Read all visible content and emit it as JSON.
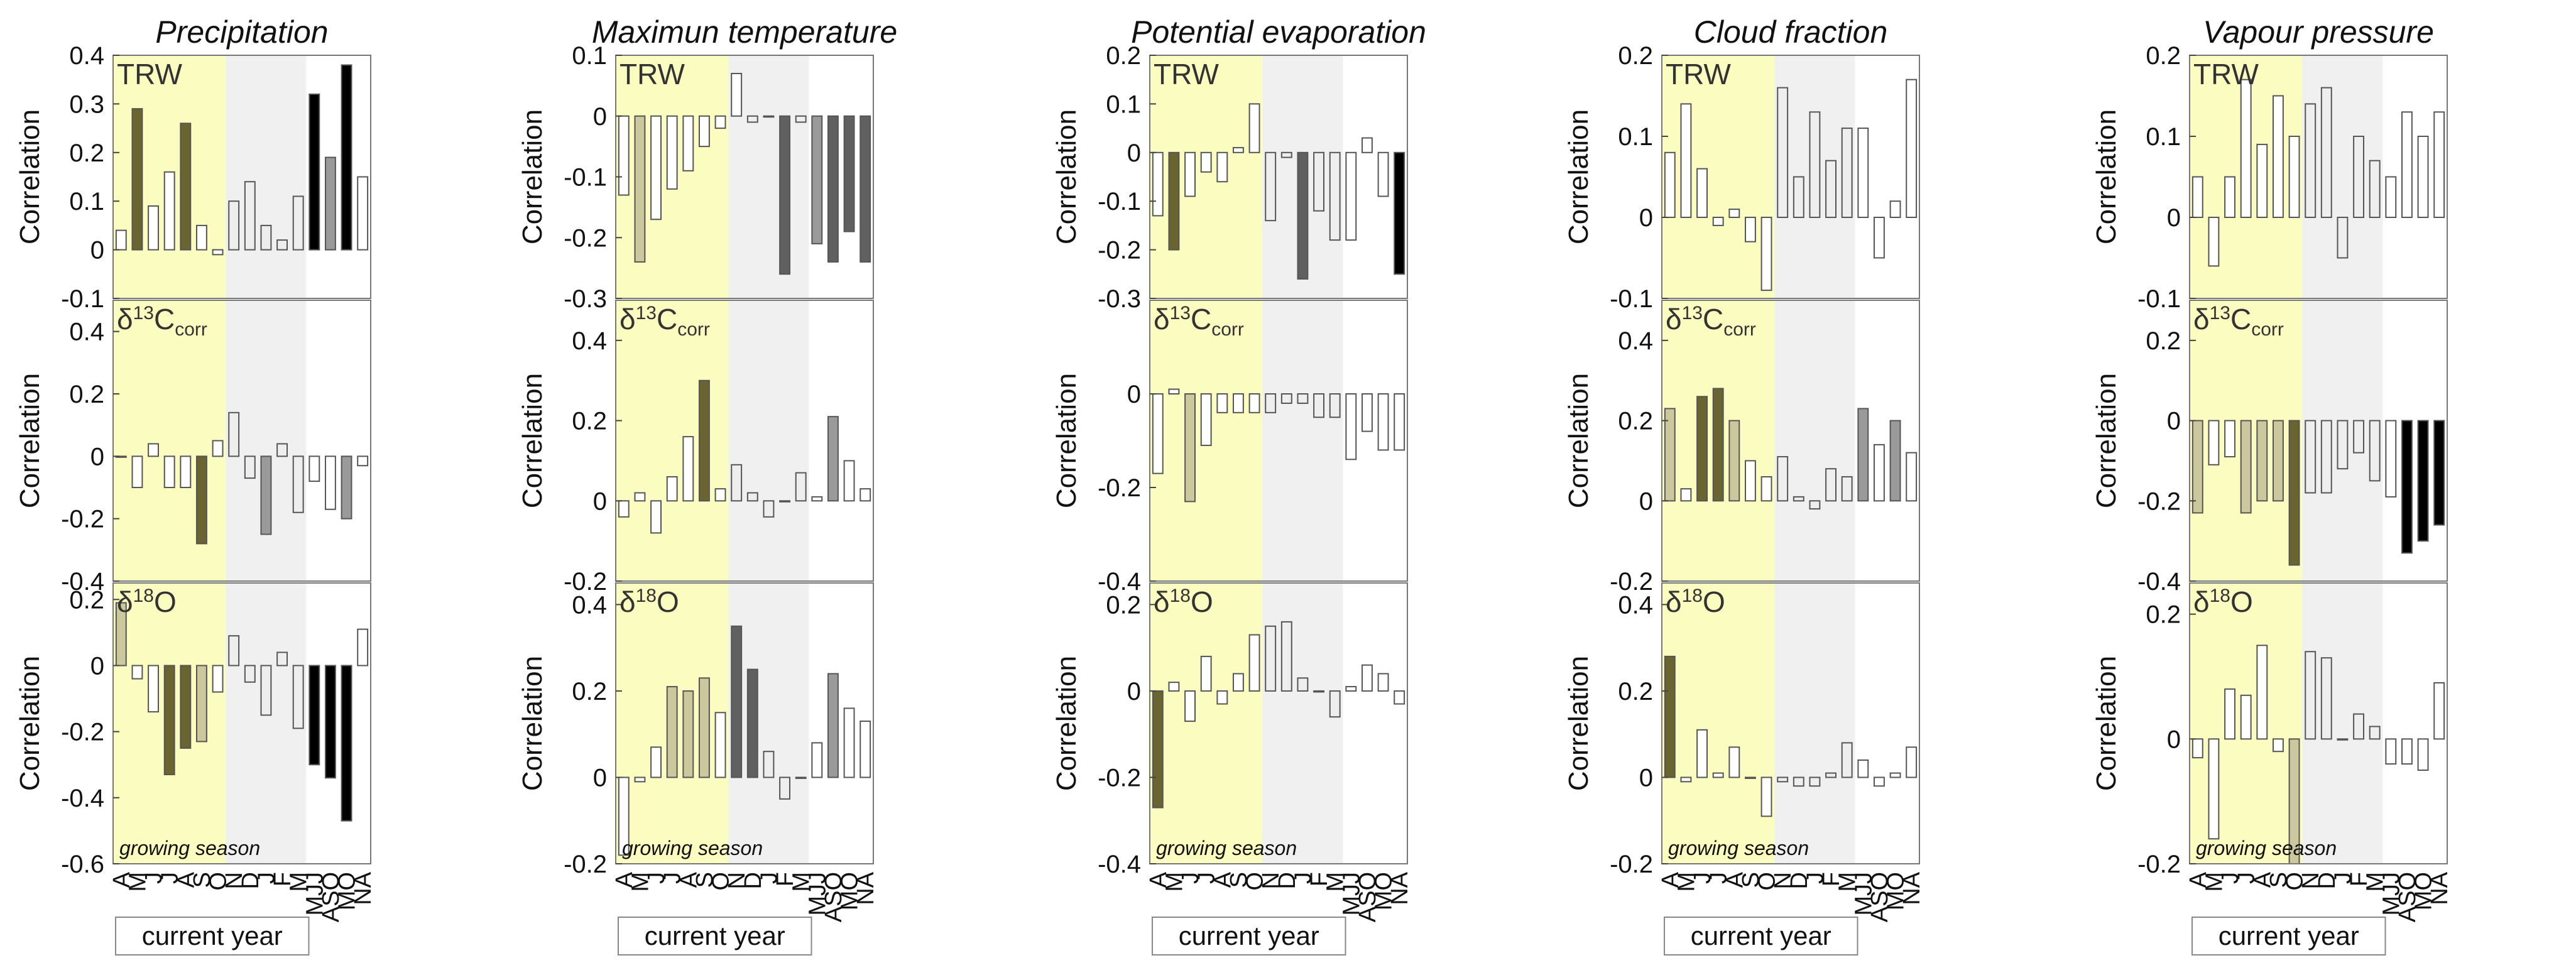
{
  "labels": {
    "y_axis": "Correlation",
    "growing_season": "growing season",
    "current_year": "current year",
    "row_labels": [
      "TRW",
      "δ13Ccorr",
      "δ18O"
    ]
  },
  "categories": [
    "A",
    "M",
    "J",
    "J",
    "A",
    "S",
    "O",
    "N",
    "D",
    "J",
    "F",
    "M",
    "MJJ",
    "ASO",
    "MO",
    "NA"
  ],
  "colors": {
    "growing_bg": "#fbfcc0",
    "dormant_bg": "#f0f0f0",
    "edge": "#555555",
    "f0": "#ffffff",
    "f1": "#eeeeee",
    "f2": "#cbc89e",
    "f3": "#6a6530",
    "f4": "#9a9a9a",
    "f5": "#606060",
    "f6": "#000000"
  },
  "chart_data": [
    {
      "type": "bar",
      "title": "Precipitation",
      "ylabel": "Correlation",
      "rows": [
        {
          "label": "TRW",
          "ylim": [
            -0.1,
            0.4
          ],
          "ticks": [
            0.4,
            0.3,
            0.2,
            0.1,
            0,
            -0.1
          ],
          "values": [
            0.04,
            0.29,
            0.09,
            0.16,
            0.26,
            0.05,
            -0.01,
            0.1,
            0.14,
            0.05,
            0.02,
            0.11,
            0.32,
            0.19,
            0.38,
            0.15
          ],
          "shades": [
            0,
            3,
            0,
            0,
            3,
            0,
            0,
            1,
            1,
            1,
            1,
            1,
            6,
            4,
            6,
            0
          ]
        },
        {
          "label": "δ13Ccorr",
          "ylim": [
            -0.4,
            0.5
          ],
          "ticks": [
            0.4,
            0.2,
            0,
            -0.2,
            -0.4
          ],
          "values": [
            0.0,
            -0.1,
            0.04,
            -0.1,
            -0.1,
            -0.28,
            0.05,
            0.14,
            -0.07,
            -0.25,
            0.04,
            -0.18,
            -0.08,
            -0.17,
            -0.2,
            -0.03
          ],
          "shades": [
            0,
            0,
            0,
            0,
            0,
            3,
            0,
            1,
            1,
            4,
            1,
            1,
            0,
            0,
            4,
            0
          ]
        },
        {
          "label": "δ18O",
          "ylim": [
            -0.6,
            0.25
          ],
          "ticks": [
            0.2,
            0,
            -0.2,
            -0.4,
            -0.6
          ],
          "values": [
            0.19,
            -0.04,
            -0.14,
            -0.33,
            -0.25,
            -0.23,
            -0.08,
            0.09,
            -0.05,
            -0.15,
            0.04,
            -0.19,
            -0.3,
            -0.34,
            -0.47,
            0.11
          ],
          "shades": [
            2,
            0,
            0,
            3,
            3,
            2,
            0,
            1,
            1,
            1,
            1,
            1,
            6,
            6,
            6,
            0
          ]
        }
      ]
    },
    {
      "type": "bar",
      "title": "Maximun temperature",
      "ylabel": "Correlation",
      "rows": [
        {
          "label": "TRW",
          "ylim": [
            -0.3,
            0.1
          ],
          "ticks": [
            0.1,
            0,
            -0.1,
            -0.2,
            -0.3
          ],
          "values": [
            -0.13,
            -0.24,
            -0.17,
            -0.12,
            -0.09,
            -0.05,
            -0.02,
            0.07,
            -0.01,
            0.0,
            -0.26,
            -0.01,
            -0.21,
            -0.24,
            -0.19,
            -0.24
          ],
          "shades": [
            0,
            2,
            0,
            0,
            0,
            0,
            0,
            0,
            1,
            1,
            5,
            1,
            4,
            5,
            5,
            5
          ]
        },
        {
          "label": "δ13Ccorr",
          "ylim": [
            -0.2,
            0.5
          ],
          "ticks": [
            0.4,
            0.2,
            0,
            -0.2
          ],
          "values": [
            -0.04,
            0.02,
            -0.08,
            0.06,
            0.16,
            0.3,
            0.03,
            0.09,
            0.02,
            -0.04,
            0.0,
            0.07,
            0.01,
            0.21,
            0.1,
            0.03
          ],
          "shades": [
            0,
            0,
            0,
            0,
            0,
            3,
            0,
            1,
            1,
            1,
            1,
            1,
            0,
            4,
            0,
            0
          ]
        },
        {
          "label": "δ18O",
          "ylim": [
            -0.2,
            0.45
          ],
          "ticks": [
            0.4,
            0.2,
            0,
            -0.2
          ],
          "values": [
            -0.18,
            -0.01,
            0.07,
            0.21,
            0.2,
            0.23,
            0.15,
            0.35,
            0.25,
            0.06,
            -0.05,
            0.0,
            0.08,
            0.24,
            0.16,
            0.13
          ],
          "shades": [
            0,
            0,
            0,
            2,
            2,
            2,
            0,
            5,
            5,
            1,
            1,
            1,
            0,
            4,
            0,
            0
          ]
        }
      ]
    },
    {
      "type": "bar",
      "title": "Potential evaporation",
      "ylabel": "Correlation",
      "rows": [
        {
          "label": "TRW",
          "ylim": [
            -0.3,
            0.2
          ],
          "ticks": [
            0.2,
            0.1,
            0,
            -0.1,
            -0.2,
            -0.3
          ],
          "values": [
            -0.13,
            -0.2,
            -0.09,
            -0.04,
            -0.06,
            0.01,
            0.1,
            -0.14,
            -0.01,
            -0.26,
            -0.12,
            -0.18,
            -0.18,
            0.03,
            -0.09,
            -0.25
          ],
          "shades": [
            0,
            3,
            0,
            0,
            0,
            0,
            0,
            1,
            1,
            5,
            1,
            1,
            0,
            0,
            0,
            6
          ]
        },
        {
          "label": "δ13Ccorr",
          "ylim": [
            -0.4,
            0.2
          ],
          "ticks": [
            0,
            -0.2,
            -0.4
          ],
          "values": [
            -0.17,
            0.01,
            -0.23,
            -0.11,
            -0.04,
            -0.04,
            -0.04,
            -0.04,
            -0.02,
            -0.02,
            -0.05,
            -0.05,
            -0.14,
            -0.08,
            -0.12,
            -0.12
          ],
          "shades": [
            0,
            0,
            2,
            0,
            0,
            0,
            0,
            1,
            1,
            1,
            1,
            1,
            0,
            0,
            0,
            0
          ]
        },
        {
          "label": "δ18O",
          "ylim": [
            -0.4,
            0.25
          ],
          "ticks": [
            0.2,
            0,
            -0.2,
            -0.4
          ],
          "values": [
            -0.27,
            0.02,
            -0.07,
            0.08,
            -0.03,
            0.04,
            0.13,
            0.15,
            0.16,
            0.03,
            0.0,
            -0.06,
            0.01,
            0.06,
            0.04,
            -0.03
          ],
          "shades": [
            3,
            0,
            0,
            0,
            0,
            0,
            0,
            1,
            1,
            1,
            1,
            1,
            0,
            0,
            0,
            0
          ]
        }
      ]
    },
    {
      "type": "bar",
      "title": "Cloud fraction",
      "ylabel": "Correlation",
      "rows": [
        {
          "label": "TRW",
          "ylim": [
            -0.1,
            0.2
          ],
          "ticks": [
            0.2,
            0.1,
            0,
            -0.1
          ],
          "values": [
            0.08,
            0.14,
            0.06,
            -0.01,
            0.01,
            -0.03,
            -0.09,
            0.16,
            0.05,
            0.13,
            0.07,
            0.11,
            0.11,
            -0.05,
            0.02,
            0.17
          ],
          "shades": [
            0,
            0,
            0,
            0,
            0,
            0,
            0,
            1,
            1,
            1,
            1,
            1,
            0,
            0,
            0,
            0
          ]
        },
        {
          "label": "δ13Ccorr",
          "ylim": [
            -0.2,
            0.5
          ],
          "ticks": [
            0.4,
            0.2,
            0,
            -0.2
          ],
          "values": [
            0.23,
            0.03,
            0.26,
            0.28,
            0.2,
            0.1,
            0.06,
            0.11,
            0.01,
            -0.02,
            0.08,
            0.06,
            0.23,
            0.14,
            0.2,
            0.12
          ],
          "shades": [
            2,
            0,
            3,
            3,
            2,
            0,
            0,
            1,
            1,
            1,
            1,
            1,
            4,
            0,
            4,
            0
          ]
        },
        {
          "label": "δ18O",
          "ylim": [
            -0.2,
            0.45
          ],
          "ticks": [
            0.4,
            0.2,
            0,
            -0.2
          ],
          "values": [
            0.28,
            -0.01,
            0.11,
            0.01,
            0.07,
            0.0,
            -0.09,
            -0.01,
            -0.02,
            -0.02,
            0.01,
            0.08,
            0.04,
            -0.02,
            0.01,
            0.07
          ],
          "shades": [
            3,
            0,
            0,
            0,
            0,
            0,
            0,
            1,
            1,
            1,
            1,
            1,
            0,
            0,
            0,
            0
          ]
        }
      ]
    },
    {
      "type": "bar",
      "title": "Vapour pressure",
      "ylabel": "Correlation",
      "rows": [
        {
          "label": "TRW",
          "ylim": [
            -0.1,
            0.2
          ],
          "ticks": [
            0.2,
            0.1,
            0,
            -0.1
          ],
          "values": [
            0.05,
            -0.06,
            0.05,
            0.17,
            0.09,
            0.15,
            0.1,
            0.14,
            0.16,
            -0.05,
            0.1,
            0.07,
            0.05,
            0.13,
            0.1,
            0.13
          ],
          "shades": [
            0,
            0,
            0,
            0,
            0,
            0,
            0,
            1,
            1,
            1,
            1,
            1,
            0,
            0,
            0,
            0
          ]
        },
        {
          "label": "δ13Ccorr",
          "ylim": [
            -0.4,
            0.3
          ],
          "ticks": [
            0.2,
            0,
            -0.2,
            -0.4
          ],
          "values": [
            -0.23,
            -0.11,
            -0.09,
            -0.23,
            -0.2,
            -0.2,
            -0.36,
            -0.18,
            -0.18,
            -0.12,
            -0.08,
            -0.15,
            -0.19,
            -0.33,
            -0.3,
            -0.26
          ],
          "shades": [
            2,
            0,
            0,
            2,
            2,
            2,
            3,
            1,
            1,
            1,
            1,
            1,
            0,
            6,
            6,
            6
          ]
        },
        {
          "label": "δ18O",
          "ylim": [
            -0.2,
            0.25
          ],
          "ticks": [
            0.2,
            0,
            -0.2
          ],
          "values": [
            -0.03,
            -0.16,
            0.08,
            0.07,
            0.15,
            -0.02,
            -0.2,
            0.14,
            0.13,
            0.0,
            0.04,
            0.02,
            -0.04,
            -0.04,
            -0.05,
            0.09
          ],
          "shades": [
            0,
            0,
            0,
            0,
            0,
            0,
            2,
            1,
            1,
            1,
            1,
            1,
            0,
            0,
            0,
            0
          ]
        }
      ]
    }
  ]
}
